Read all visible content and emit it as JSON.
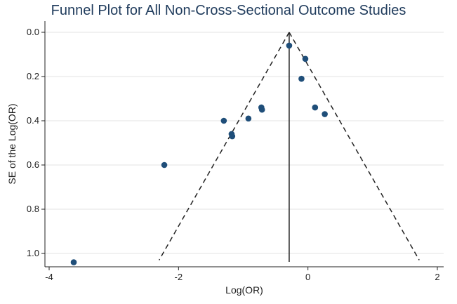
{
  "chart_data": {
    "type": "scatter",
    "title": "Funnel Plot for All Non-Cross-Sectional Outcome Studies",
    "xlabel": "Log(OR)",
    "ylabel": "SE of the Log(OR)",
    "xlim": [
      -4.1,
      2.0
    ],
    "ylim": [
      0.0,
      1.04
    ],
    "y_inverted": true,
    "xticks": [
      -4,
      -2,
      0,
      2
    ],
    "xtick_labels": [
      "-4",
      "-2",
      "0",
      "2"
    ],
    "yticks": [
      0.0,
      0.2,
      0.4,
      0.6,
      0.8,
      1.0
    ],
    "ytick_labels": [
      "0.0",
      "0.2",
      "0.4",
      "0.6",
      "0.8",
      "1.0"
    ],
    "grid": "horizontal",
    "pooled_estimate": -0.29,
    "funnel_lower": [
      [
        -0.29,
        0.0
      ],
      [
        -2.3,
        1.03
      ]
    ],
    "funnel_upper": [
      [
        -0.29,
        0.0
      ],
      [
        1.72,
        1.03
      ]
    ],
    "marker_color": "#1f4e79",
    "points": [
      {
        "x": -0.29,
        "y": 0.06
      },
      {
        "x": -0.04,
        "y": 0.12
      },
      {
        "x": -0.1,
        "y": 0.21
      },
      {
        "x": 0.11,
        "y": 0.34
      },
      {
        "x": 0.26,
        "y": 0.37
      },
      {
        "x": -0.72,
        "y": 0.34
      },
      {
        "x": -0.71,
        "y": 0.35
      },
      {
        "x": -0.92,
        "y": 0.39
      },
      {
        "x": -1.3,
        "y": 0.4
      },
      {
        "x": -1.18,
        "y": 0.46
      },
      {
        "x": -1.17,
        "y": 0.47
      },
      {
        "x": -2.22,
        "y": 0.6
      },
      {
        "x": -3.62,
        "y": 1.04
      }
    ]
  }
}
